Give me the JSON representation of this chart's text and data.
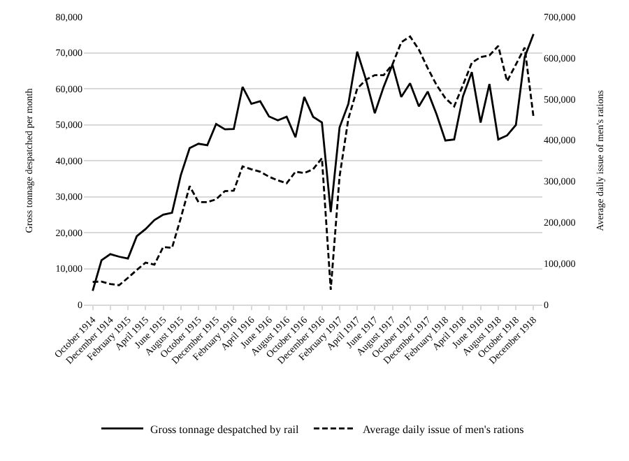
{
  "chart_data": {
    "type": "line",
    "ylabel": "Gross tonnage despatched per month",
    "y2label": "Average daily issue of men's rations",
    "categories": [
      "October 1914",
      null,
      "December 1914",
      null,
      "February 1915",
      null,
      "April 1915",
      null,
      "June 1915",
      null,
      "August 1915",
      null,
      "October 1915",
      null,
      "December 1915",
      null,
      "February 1916",
      null,
      "April 1916",
      null,
      "June 1916",
      null,
      "August 1916",
      null,
      "October 1916",
      null,
      "December 1916",
      null,
      "February 1917",
      null,
      "April 1917",
      null,
      "June 1917",
      null,
      "August 1917",
      null,
      "October 1917",
      null,
      "December 1917",
      null,
      "February 1918",
      null,
      "April 1918",
      null,
      "June 1918",
      null,
      "August 1918",
      null,
      "October 1918",
      null,
      "December 1918"
    ],
    "series": [
      {
        "name": "Gross tonnage despatched by rail",
        "color": "#000000",
        "line_style": "solid",
        "values": [
          3800,
          12300,
          14000,
          13300,
          12800,
          19000,
          21000,
          23500,
          25000,
          25500,
          36000,
          43500,
          44700,
          44300,
          50200,
          48700,
          48800,
          60500,
          55800,
          56500,
          52300,
          51200,
          52200,
          46500,
          57700,
          52200,
          50600,
          25700,
          49200,
          55800,
          70300,
          62500,
          53200,
          60500,
          66700,
          57700,
          61500,
          55100,
          59200,
          52900,
          45600,
          45900,
          57900,
          64600,
          50600,
          61300,
          45900,
          47000,
          49900,
          68800,
          75200
        ]
      },
      {
        "name": "Average daily issue of men's rations",
        "color": "#000000",
        "line_style": "dashed",
        "axis": "y2",
        "values": [
          55000,
          56000,
          50000,
          47000,
          65000,
          84000,
          102000,
          97000,
          140000,
          138000,
          211000,
          288000,
          249000,
          249000,
          256000,
          276000,
          277000,
          336000,
          329000,
          323000,
          311000,
          302000,
          295000,
          323000,
          320000,
          329000,
          356000,
          36000,
          311000,
          452000,
          525000,
          547000,
          558000,
          558000,
          584000,
          638000,
          652000,
          620000,
          575000,
          534000,
          502000,
          482000,
          534000,
          588000,
          602000,
          606000,
          629000,
          543000,
          584000,
          625000,
          456000
        ]
      }
    ],
    "ylim": [
      0,
      80000
    ],
    "yticks": [
      0,
      {
        "value": 10000,
        "label": "10,000"
      },
      {
        "value": 20000,
        "label": "20,000"
      },
      {
        "value": 30000,
        "label": "30,000"
      },
      {
        "value": 40000,
        "label": "40,000"
      },
      {
        "value": 50000,
        "label": "50,000"
      },
      {
        "value": 60000,
        "label": "60,000"
      },
      {
        "value": 70000,
        "label": "70,000"
      },
      {
        "value": 80000,
        "label": "80,000"
      }
    ],
    "y2lim": [
      0,
      700000
    ],
    "y2ticks": [
      0,
      {
        "value": 100000,
        "label": "100,000"
      },
      {
        "value": 200000,
        "label": "200,000"
      },
      {
        "value": 300000,
        "label": "300,000"
      },
      {
        "value": 400000,
        "label": "400,000"
      },
      {
        "value": 500000,
        "label": "500,000"
      },
      {
        "value": 600000,
        "label": "600,000"
      },
      {
        "value": 700000,
        "label": "700,000"
      }
    ],
    "grid": "y",
    "legend": "bottom"
  }
}
